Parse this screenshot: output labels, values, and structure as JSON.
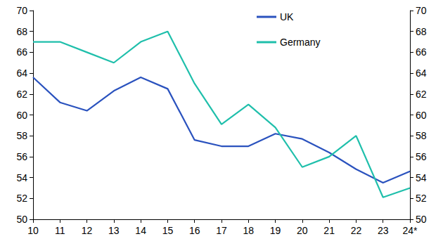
{
  "chart_data": {
    "type": "line",
    "categories": [
      "10",
      "11",
      "12",
      "13",
      "14",
      "15",
      "16",
      "17",
      "18",
      "19",
      "20",
      "21",
      "22",
      "23",
      "24*"
    ],
    "series": [
      {
        "name": "UK",
        "color": "#2a52be",
        "values": [
          63.6,
          61.2,
          60.4,
          62.3,
          63.6,
          62.5,
          57.6,
          57.0,
          57.0,
          58.2,
          57.7,
          56.4,
          54.8,
          53.5,
          54.6
        ]
      },
      {
        "name": "Germany",
        "color": "#1fbfab",
        "values": [
          67,
          67,
          66,
          65,
          67,
          68,
          63,
          59.1,
          61,
          58.8,
          55,
          56,
          58,
          52.1,
          53
        ]
      }
    ],
    "ylim": [
      50,
      70
    ],
    "yticks": [
      50,
      52,
      54,
      56,
      58,
      60,
      62,
      64,
      66,
      68,
      70
    ],
    "y2lim": [
      50,
      70
    ],
    "y2ticks": [
      50,
      52,
      54,
      56,
      58,
      60,
      62,
      64,
      66,
      68,
      70
    ],
    "grid": false,
    "legend": "top"
  }
}
